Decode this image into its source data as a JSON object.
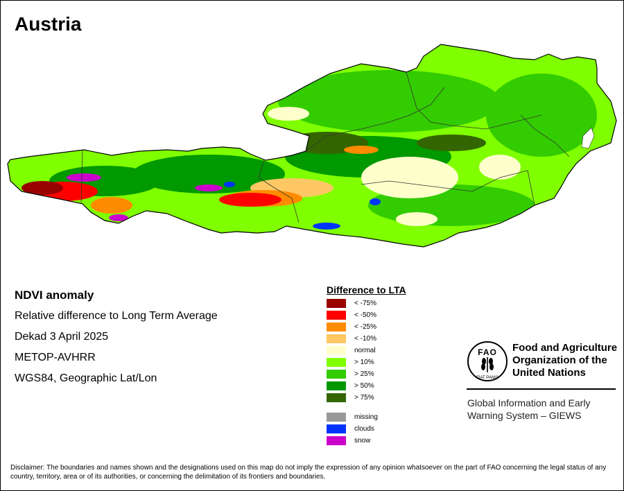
{
  "title": "Austria",
  "info": {
    "heading": "NDVI anomaly",
    "lines": [
      "Relative difference to Long Term Average",
      "Dekad 3 April 2025",
      "METOP-AVHRR",
      "WGS84, Geographic Lat/Lon"
    ]
  },
  "legend": {
    "title": "Difference to LTA",
    "items": [
      {
        "label": "< -75%",
        "color": "#990000"
      },
      {
        "label": "< -50%",
        "color": "#ff0000"
      },
      {
        "label": "< -25%",
        "color": "#ff8c00"
      },
      {
        "label": "< -10%",
        "color": "#ffc864"
      },
      {
        "label": "normal",
        "color": "#ffffcc"
      },
      {
        "label": "> 10%",
        "color": "#80ff00"
      },
      {
        "label": "> 25%",
        "color": "#33cc00"
      },
      {
        "label": "> 50%",
        "color": "#009900"
      },
      {
        "label": "> 75%",
        "color": "#336600"
      }
    ],
    "extra": [
      {
        "label": "missing",
        "color": "#999999"
      },
      {
        "label": "clouds",
        "color": "#0033ff"
      },
      {
        "label": "snow",
        "color": "#cc00cc"
      }
    ]
  },
  "fao": {
    "name_lines": [
      "Food and Agriculture",
      "Organization of the",
      "United Nations"
    ],
    "logo_letters": "FAO",
    "motto": "FIAT PANIS",
    "giews_lines": [
      "Global Information and Early",
      "Warning System – GIEWS"
    ]
  },
  "disclaimer": "Disclaimer: The boundaries and names shown and the designations used on this map do not imply the expression of any opinion whatsoever on the part of FAO concerning the legal status of any country, territory, area or of its authorities, or concerning the delimitation of its frontiers and boundaries."
}
